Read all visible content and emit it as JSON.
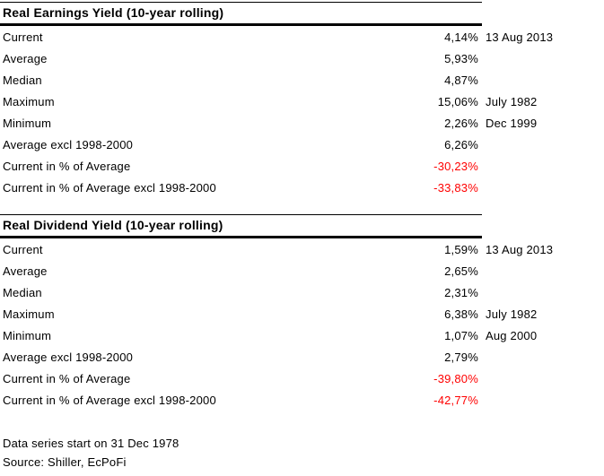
{
  "colors": {
    "text": "#000000",
    "rule": "#000000",
    "negative": "#ff0000",
    "background": "#ffffff"
  },
  "chart_data": [
    {
      "type": "table",
      "title": "Real Earnings Yield (10-year rolling)",
      "columns": [
        "metric",
        "value",
        "date"
      ],
      "rows": [
        {
          "label": "Current",
          "value": "4,14%",
          "note": "13 Aug 2013",
          "negative": false
        },
        {
          "label": "Average",
          "value": "5,93%",
          "note": "",
          "negative": false
        },
        {
          "label": "Median",
          "value": "4,87%",
          "note": "",
          "negative": false
        },
        {
          "label": "Maximum",
          "value": "15,06%",
          "note": "July 1982",
          "negative": false
        },
        {
          "label": "Minimum",
          "value": "2,26%",
          "note": "Dec 1999",
          "negative": false
        },
        {
          "label": "Average excl 1998-2000",
          "value": "6,26%",
          "note": "",
          "negative": false
        },
        {
          "label": "Current in % of Average",
          "value": "-30,23%",
          "note": "",
          "negative": true
        },
        {
          "label": "Current in % of Average excl 1998-2000",
          "value": "-33,83%",
          "note": "",
          "negative": true
        }
      ]
    },
    {
      "type": "table",
      "title": "Real Dividend Yield (10-year rolling)",
      "columns": [
        "metric",
        "value",
        "date"
      ],
      "rows": [
        {
          "label": "Current",
          "value": "1,59%",
          "note": "13 Aug 2013",
          "negative": false
        },
        {
          "label": "Average",
          "value": "2,65%",
          "note": "",
          "negative": false
        },
        {
          "label": "Median",
          "value": "2,31%",
          "note": "",
          "negative": false
        },
        {
          "label": "Maximum",
          "value": "6,38%",
          "note": "July 1982",
          "negative": false
        },
        {
          "label": "Minimum",
          "value": "1,07%",
          "note": "Aug 2000",
          "negative": false
        },
        {
          "label": "Average excl 1998-2000",
          "value": "2,79%",
          "note": "",
          "negative": false
        },
        {
          "label": "Current in % of Average",
          "value": "-39,80%",
          "note": "",
          "negative": true
        },
        {
          "label": "Current in % of Average excl 1998-2000",
          "value": "-42,77%",
          "note": "",
          "negative": true
        }
      ]
    }
  ],
  "footer": {
    "line1": "Data series start on 31 Dec 1978",
    "line2": "Source: Shiller, EcPoFi"
  }
}
